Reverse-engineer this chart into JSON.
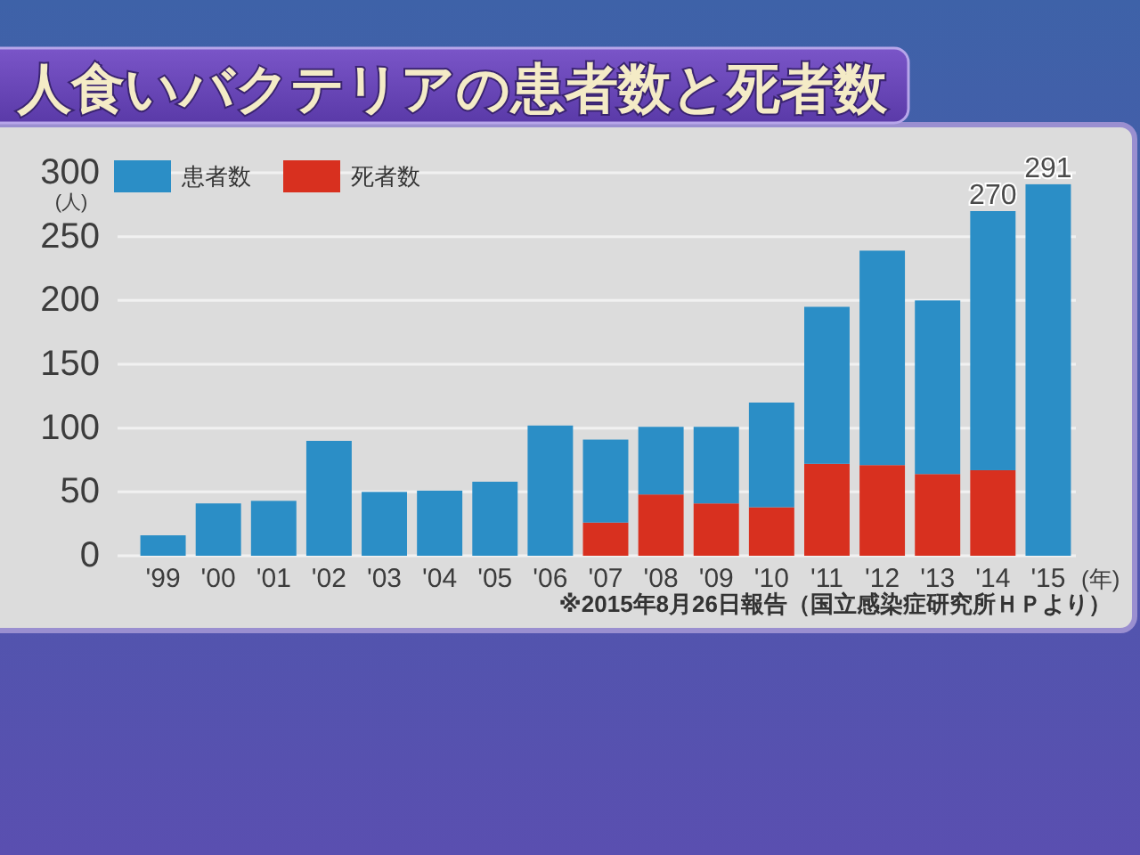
{
  "chart_data": {
    "type": "bar",
    "title": "人食いバクテリアの患者数と死者数",
    "ylabel": "(人)",
    "xlabel": "(年)",
    "annotations": [
      "※2015年8月26日報告（国立感染症研究所ＨＰより）"
    ],
    "categories": [
      "'99",
      "'00",
      "'01",
      "'02",
      "'03",
      "'04",
      "'05",
      "'06",
      "'07",
      "'08",
      "'09",
      "'10",
      "'11",
      "'12",
      "'13",
      "'14",
      "'15"
    ],
    "stacked": true,
    "series": [
      {
        "name": "死者数",
        "color": "#d8301f",
        "values": [
          null,
          null,
          null,
          null,
          null,
          null,
          null,
          null,
          26,
          48,
          41,
          38,
          72,
          71,
          64,
          67,
          null
        ]
      },
      {
        "name": "患者数",
        "color": "#2b8ec6",
        "values": [
          16,
          41,
          43,
          90,
          50,
          51,
          58,
          102,
          65,
          53,
          60,
          82,
          123,
          168,
          136,
          203,
          291
        ]
      }
    ],
    "totals": [
      null,
      null,
      null,
      null,
      null,
      null,
      null,
      null,
      null,
      null,
      null,
      null,
      null,
      null,
      null,
      "270",
      "291"
    ],
    "ylim": [
      0,
      300
    ],
    "yticks": [
      0,
      50,
      100,
      150,
      200,
      250,
      300
    ],
    "grid": "y",
    "legend": "top left"
  }
}
